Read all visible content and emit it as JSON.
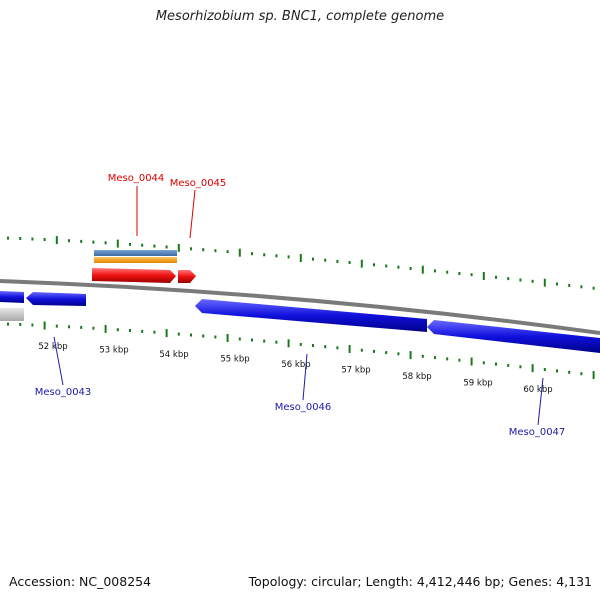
{
  "title": "Mesorhizobium sp. BNC1, complete genome",
  "footer": {
    "accession": "Accession: NC_008254",
    "summary": "Topology: circular; Length: 4,412,446 bp; Genes: 4,131"
  },
  "scale_labels": [
    "52 kbp",
    "53 kbp",
    "54 kbp",
    "55 kbp",
    "56 kbp",
    "57 kbp",
    "58 kbp",
    "59 kbp",
    "60 kbp"
  ],
  "gene_labels": {
    "top": [
      "Meso_0044",
      "Meso_0045"
    ],
    "bottom": [
      "Meso_0043",
      "Meso_0046",
      "Meso_0047"
    ]
  },
  "colors": {
    "forward_gene": "#ee1111",
    "reverse_gene": "#1010dd",
    "backbone": "#888888",
    "ticks": "#1a7a1a",
    "track_blue": "#4f7fb8",
    "track_orange": "#f2a01c",
    "grey_feature": "#c8c8c8",
    "top_label": "#dd0000",
    "bottom_label": "#1a1aaa"
  }
}
